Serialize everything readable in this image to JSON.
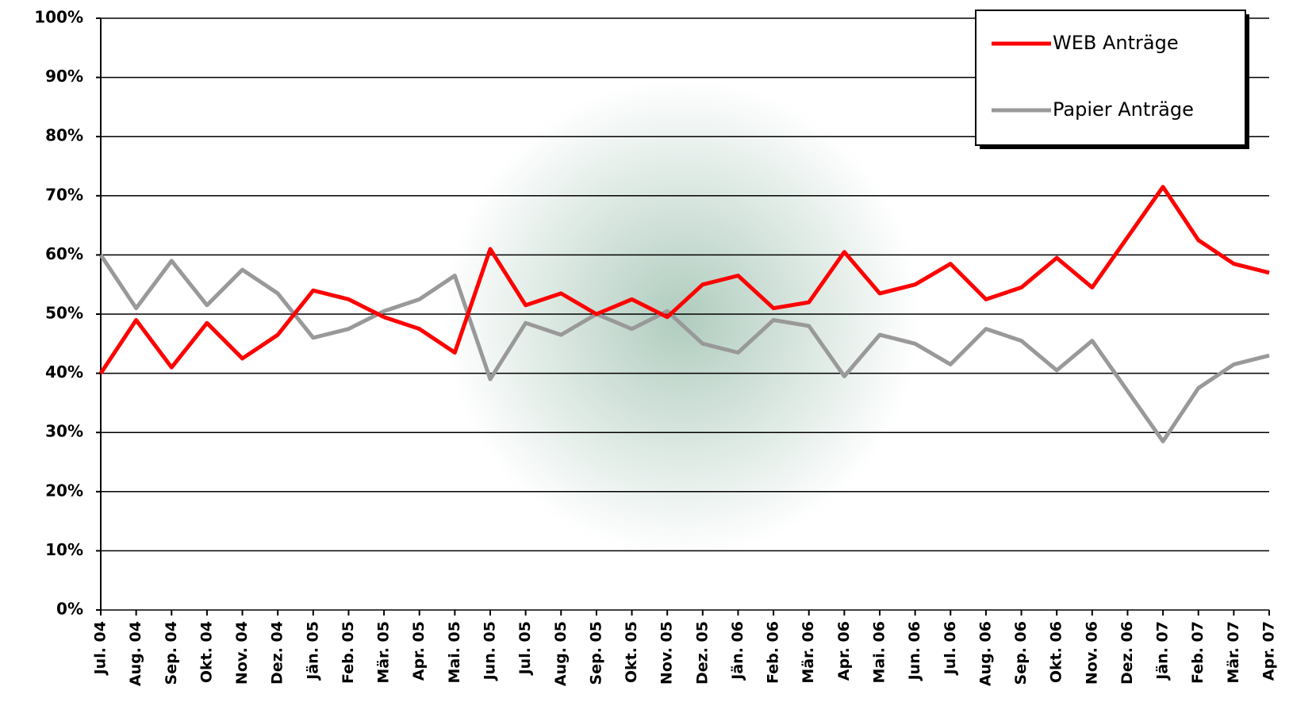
{
  "chart_data": {
    "type": "line",
    "categories": [
      "Jul. 04",
      "Aug. 04",
      "Sep. 04",
      "Okt. 04",
      "Nov. 04",
      "Dez. 04",
      "Jän. 05",
      "Feb. 05",
      "Mär. 05",
      "Apr. 05",
      "Mai. 05",
      "Jun. 05",
      "Jul. 05",
      "Aug. 05",
      "Sep. 05",
      "Okt. 05",
      "Nov. 05",
      "Dez. 05",
      "Jän. 06",
      "Feb. 06",
      "Mär. 06",
      "Apr. 06",
      "Mai. 06",
      "Jun. 06",
      "Jul. 06",
      "Aug. 06",
      "Sep. 06",
      "Okt. 06",
      "Nov. 06",
      "Dez. 06",
      "Jän. 07",
      "Feb. 07",
      "Mär. 07",
      "Apr. 07"
    ],
    "series": [
      {
        "name": "WEB Anträge",
        "color": "#ff0000",
        "values": [
          40,
          49,
          41,
          48.5,
          42.5,
          46.5,
          54,
          52.5,
          49.5,
          47.5,
          43.5,
          61,
          51.5,
          53.5,
          50,
          52.5,
          49.5,
          55,
          56.5,
          51,
          52,
          60.5,
          53.5,
          55,
          58.5,
          52.5,
          54.5,
          59.5,
          54.5,
          63,
          71.5,
          62.5,
          58.5,
          57
        ]
      },
      {
        "name": "Papier Anträge",
        "color": "#999999",
        "values": [
          60,
          51,
          59,
          51.5,
          57.5,
          53.5,
          46,
          47.5,
          50.5,
          52.5,
          56.5,
          39,
          48.5,
          46.5,
          50,
          47.5,
          50.5,
          45,
          43.5,
          49,
          48,
          39.5,
          46.5,
          45,
          41.5,
          47.5,
          45.5,
          40.5,
          45.5,
          37,
          28.5,
          37.5,
          41.5,
          43
        ]
      }
    ],
    "ylim": [
      0,
      100
    ],
    "yticks": [
      {
        "value": 0,
        "label": "0%"
      },
      {
        "value": 10,
        "label": "10%"
      },
      {
        "value": 20,
        "label": "20%"
      },
      {
        "value": 30,
        "label": "30%"
      },
      {
        "value": 40,
        "label": "40%"
      },
      {
        "value": 50,
        "label": "50%"
      },
      {
        "value": 60,
        "label": "60%"
      },
      {
        "value": 70,
        "label": "70%"
      },
      {
        "value": 80,
        "label": "80%"
      },
      {
        "value": 90,
        "label": "90%"
      },
      {
        "value": 100,
        "label": "100%"
      }
    ],
    "grid": true,
    "legend": "upper right"
  }
}
